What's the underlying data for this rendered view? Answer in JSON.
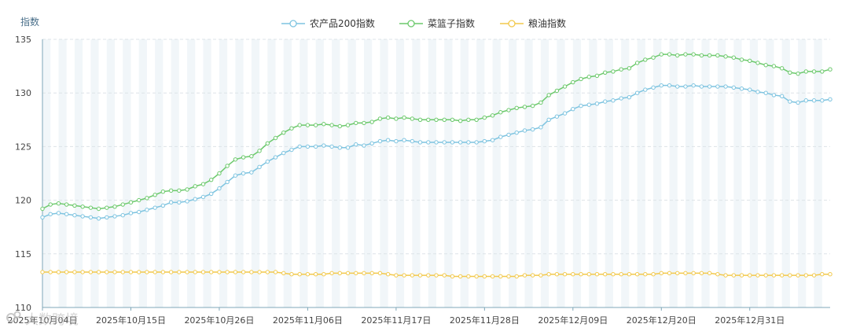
{
  "chart_data": {
    "type": "line",
    "ylabel": "指数",
    "ylim": [
      110,
      135
    ],
    "yticks": [
      110,
      115,
      120,
      125,
      130,
      135
    ],
    "x_tick_labels": [
      "2025年10月04日",
      "2025年10月15日",
      "2025年10月26日",
      "2025年11月06日",
      "2025年11月17日",
      "2025年11月28日",
      "2025年12月09日",
      "2025年12月20日",
      "2025年12月31日"
    ],
    "series": [
      {
        "name": "农产品200指数",
        "color": "#7ec4e0",
        "values": [
          118.4,
          118.7,
          118.8,
          118.7,
          118.6,
          118.5,
          118.4,
          118.3,
          118.4,
          118.5,
          118.6,
          118.8,
          118.9,
          119.1,
          119.3,
          119.5,
          119.8,
          119.8,
          119.9,
          120.1,
          120.3,
          120.6,
          121.1,
          121.7,
          122.3,
          122.5,
          122.6,
          123.1,
          123.6,
          124.0,
          124.4,
          124.7,
          125.0,
          125.0,
          125.0,
          125.1,
          125.0,
          124.9,
          124.9,
          125.2,
          125.1,
          125.3,
          125.5,
          125.6,
          125.5,
          125.6,
          125.5,
          125.4,
          125.4,
          125.4,
          125.4,
          125.4,
          125.4,
          125.4,
          125.4,
          125.5,
          125.6,
          125.9,
          126.1,
          126.3,
          126.5,
          126.6,
          126.8,
          127.5,
          127.8,
          128.1,
          128.5,
          128.8,
          128.9,
          129.0,
          129.2,
          129.3,
          129.5,
          129.6,
          130.0,
          130.3,
          130.5,
          130.7,
          130.7,
          130.6,
          130.6,
          130.7,
          130.6,
          130.6,
          130.6,
          130.6,
          130.5,
          130.4,
          130.3,
          130.1,
          130.0,
          129.8,
          129.7,
          129.2,
          129.1,
          129.3,
          129.3,
          129.3,
          129.4
        ]
      },
      {
        "name": "菜篮子指数",
        "color": "#6cc96c",
        "values": [
          119.2,
          119.6,
          119.7,
          119.6,
          119.5,
          119.4,
          119.3,
          119.2,
          119.3,
          119.4,
          119.6,
          119.8,
          120.0,
          120.2,
          120.5,
          120.8,
          120.9,
          120.9,
          121.0,
          121.3,
          121.5,
          121.9,
          122.5,
          123.2,
          123.8,
          124.0,
          124.1,
          124.6,
          125.3,
          125.8,
          126.3,
          126.7,
          127.0,
          127.0,
          127.0,
          127.1,
          127.0,
          126.9,
          127.0,
          127.2,
          127.2,
          127.3,
          127.6,
          127.7,
          127.6,
          127.7,
          127.6,
          127.5,
          127.5,
          127.5,
          127.5,
          127.5,
          127.4,
          127.5,
          127.5,
          127.7,
          127.9,
          128.2,
          128.4,
          128.6,
          128.7,
          128.8,
          129.1,
          129.8,
          130.2,
          130.6,
          131.0,
          131.3,
          131.5,
          131.6,
          131.9,
          132.0,
          132.2,
          132.3,
          132.8,
          133.1,
          133.3,
          133.6,
          133.6,
          133.5,
          133.6,
          133.6,
          133.5,
          133.5,
          133.5,
          133.4,
          133.3,
          133.1,
          133.0,
          132.8,
          132.6,
          132.5,
          132.3,
          131.9,
          131.8,
          132.0,
          132.0,
          132.0,
          132.2
        ]
      },
      {
        "name": "粮油指数",
        "color": "#f2c94c",
        "values": [
          113.3,
          113.3,
          113.3,
          113.3,
          113.3,
          113.3,
          113.3,
          113.3,
          113.3,
          113.3,
          113.3,
          113.3,
          113.3,
          113.3,
          113.3,
          113.3,
          113.3,
          113.3,
          113.3,
          113.3,
          113.3,
          113.3,
          113.3,
          113.3,
          113.3,
          113.3,
          113.3,
          113.3,
          113.3,
          113.3,
          113.2,
          113.1,
          113.1,
          113.1,
          113.1,
          113.1,
          113.2,
          113.2,
          113.2,
          113.2,
          113.2,
          113.2,
          113.2,
          113.1,
          113.0,
          113.0,
          113.0,
          113.0,
          113.0,
          113.0,
          113.0,
          112.9,
          112.9,
          112.9,
          112.9,
          112.9,
          112.9,
          112.9,
          112.9,
          112.9,
          113.0,
          113.0,
          113.0,
          113.1,
          113.1,
          113.1,
          113.1,
          113.1,
          113.1,
          113.1,
          113.1,
          113.1,
          113.1,
          113.1,
          113.1,
          113.1,
          113.1,
          113.2,
          113.2,
          113.2,
          113.2,
          113.2,
          113.2,
          113.2,
          113.1,
          113.0,
          113.0,
          113.0,
          113.0,
          113.0,
          113.0,
          113.0,
          113.0,
          113.0,
          113.0,
          113.0,
          113.0,
          113.1,
          113.1
        ]
      }
    ]
  },
  "watermark": "大数跨境"
}
